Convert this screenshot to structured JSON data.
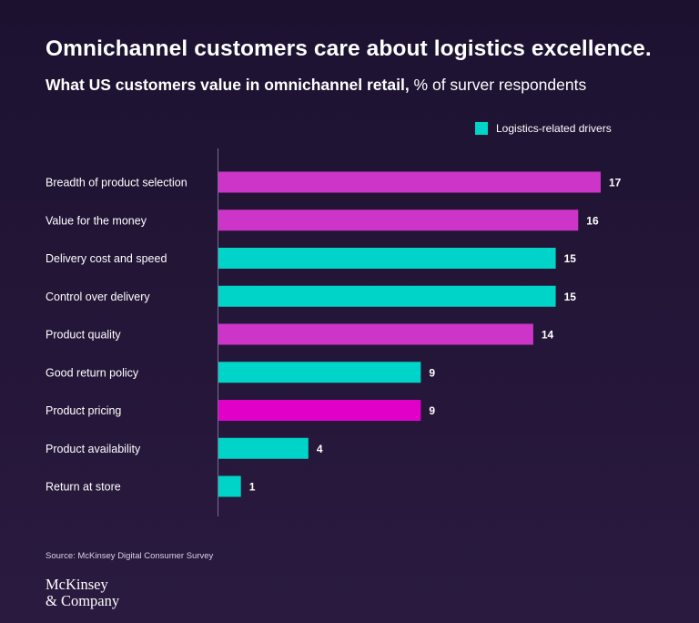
{
  "header": {
    "title": "Omnichannel customers care about logistics excellence.",
    "subtitle_lead": "What US customers value in omnichannel retail,",
    "subtitle_rest": " % of surver respondents"
  },
  "legend": {
    "label": "Logistics-related drivers",
    "color": "#00d3c7"
  },
  "colors": {
    "logistics": "#00d3c7",
    "other": "#cc35c8",
    "pricing": "#e000c8"
  },
  "chart_data": {
    "type": "bar",
    "orientation": "horizontal",
    "categories": [
      "Breadth of product selection",
      "Value for the money",
      "Delivery cost and speed",
      "Control over delivery",
      "Product quality",
      "Good return policy",
      "Product pricing",
      "Product availability",
      "Return at store"
    ],
    "values": [
      17,
      16,
      15,
      15,
      14,
      9,
      9,
      4,
      1
    ],
    "logistics_related": [
      false,
      false,
      true,
      true,
      false,
      true,
      false,
      true,
      true
    ],
    "value_labels": [
      "17",
      "16",
      "15",
      "15",
      "14",
      "9",
      "9",
      "4",
      "1"
    ],
    "xlim": [
      0,
      17
    ],
    "legend_position": "top-right",
    "grid": false
  },
  "footer": {
    "source": "Source: McKinsey Digital Consumer Survey",
    "logo_line1": "McKinsey",
    "logo_line2": "& Company"
  }
}
